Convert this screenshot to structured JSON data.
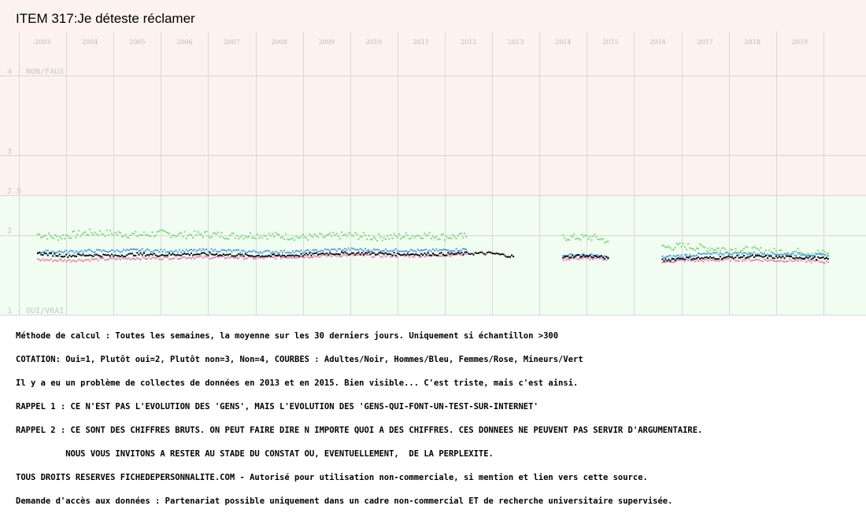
{
  "chart_data": {
    "type": "scatter",
    "title": "ITEM 317:Je déteste réclamer",
    "x_tick_labels": [
      "2003",
      "2004",
      "2005",
      "2006",
      "2007",
      "2008",
      "2009",
      "2010",
      "2011",
      "2012",
      "2013",
      "2014",
      "2015",
      "2016",
      "2017",
      "2018",
      "2019"
    ],
    "y_tick_labels": [
      {
        "value": 4,
        "label": "4 - NON/FAUX"
      },
      {
        "value": 3,
        "label": "3"
      },
      {
        "value": 2.5,
        "label": "2.5"
      },
      {
        "value": 2,
        "label": "2"
      },
      {
        "value": 1,
        "label": "1 - OUI/VRAI"
      }
    ],
    "ylim": [
      1,
      4.95
    ],
    "xlim": [
      2002.1,
      2020.4
    ],
    "grid": true,
    "background_bands": [
      {
        "from": 2.5,
        "to": 4.95,
        "color": "#fdf3ee"
      },
      {
        "from": 1,
        "to": 2.5,
        "color": "#f0fdf0"
      }
    ],
    "series": [
      {
        "name": "Adultes",
        "color": "#000000",
        "segments": [
          {
            "x": [
              2002.9,
              2003.5,
              2004.0,
              2004.5,
              2005.0,
              2005.5,
              2006.0,
              2006.5,
              2007.0,
              2007.5,
              2008.0,
              2008.5,
              2009.0,
              2009.5,
              2010.0,
              2010.5,
              2011.0,
              2011.5,
              2012.0,
              2012.5,
              2012.95
            ],
            "y": [
              1.77,
              1.74,
              1.75,
              1.74,
              1.76,
              1.75,
              1.76,
              1.76,
              1.75,
              1.74,
              1.74,
              1.75,
              1.77,
              1.77,
              1.77,
              1.76,
              1.76,
              1.76,
              1.77,
              1.77,
              1.73
            ]
          },
          {
            "x": [
              2014.0,
              2014.3,
              2014.7,
              2014.95
            ],
            "y": [
              1.72,
              1.74,
              1.73,
              1.71
            ]
          },
          {
            "x": [
              2016.1,
              2016.5,
              2017.0,
              2017.5,
              2018.0,
              2018.5,
              2019.0,
              2019.6
            ],
            "y": [
              1.68,
              1.71,
              1.71,
              1.72,
              1.73,
              1.72,
              1.72,
              1.7
            ]
          }
        ]
      },
      {
        "name": "Hommes",
        "color": "#4f9be8",
        "segments": [
          {
            "x": [
              2002.9,
              2003.5,
              2004.0,
              2004.5,
              2005.0,
              2005.5,
              2006.0,
              2006.5,
              2007.0,
              2007.5,
              2008.0,
              2008.5,
              2009.0,
              2009.5,
              2010.0,
              2010.5,
              2011.0,
              2011.5,
              2011.95
            ],
            "y": [
              1.79,
              1.79,
              1.8,
              1.8,
              1.81,
              1.8,
              1.8,
              1.81,
              1.8,
              1.79,
              1.79,
              1.79,
              1.81,
              1.82,
              1.81,
              1.81,
              1.8,
              1.81,
              1.82
            ]
          },
          {
            "x": [
              2014.0,
              2014.3,
              2014.7,
              2014.95
            ],
            "y": [
              1.74,
              1.75,
              1.74,
              1.72
            ]
          },
          {
            "x": [
              2016.1,
              2016.5,
              2017.0,
              2017.5,
              2018.0,
              2018.5,
              2019.0,
              2019.6
            ],
            "y": [
              1.72,
              1.74,
              1.76,
              1.77,
              1.77,
              1.76,
              1.76,
              1.74
            ]
          }
        ]
      },
      {
        "name": "Femmes",
        "color": "#ee7fb4",
        "segments": [
          {
            "x": [
              2002.9,
              2003.5,
              2004.0,
              2004.5,
              2005.0,
              2005.5,
              2006.0,
              2006.5,
              2007.0,
              2007.5,
              2008.0,
              2008.5,
              2009.0,
              2009.5,
              2010.0,
              2010.5,
              2011.0,
              2011.5,
              2011.95
            ],
            "y": [
              1.69,
              1.68,
              1.69,
              1.7,
              1.71,
              1.71,
              1.72,
              1.72,
              1.72,
              1.71,
              1.72,
              1.73,
              1.74,
              1.75,
              1.74,
              1.74,
              1.74,
              1.75,
              1.76
            ]
          },
          {
            "x": [
              2014.0,
              2014.3,
              2014.7,
              2014.95
            ],
            "y": [
              1.7,
              1.71,
              1.7,
              1.7
            ]
          },
          {
            "x": [
              2016.1,
              2016.5,
              2017.0,
              2017.5,
              2018.0,
              2018.5,
              2019.0,
              2019.6
            ],
            "y": [
              1.66,
              1.68,
              1.68,
              1.69,
              1.69,
              1.68,
              1.68,
              1.66
            ]
          }
        ]
      },
      {
        "name": "Mineurs",
        "color": "#7fd87f",
        "segments": [
          {
            "x": [
              2002.9,
              2003.3,
              2003.6,
              2004.0,
              2004.5,
              2005.0,
              2005.5,
              2006.0,
              2006.5,
              2007.0,
              2007.5,
              2008.0,
              2008.5,
              2009.0,
              2009.5,
              2010.0,
              2010.5,
              2011.0,
              2011.5,
              2011.95
            ],
            "y": [
              2.01,
              1.97,
              2.0,
              2.03,
              2.02,
              2.0,
              2.02,
              2.0,
              2.01,
              1.99,
              2.0,
              1.99,
              1.97,
              1.98,
              2.0,
              1.97,
              1.98,
              2.0,
              1.98,
              1.98
            ]
          },
          {
            "x": [
              2014.0,
              2014.3,
              2014.7,
              2014.95
            ],
            "y": [
              1.97,
              1.97,
              1.97,
              1.92
            ]
          },
          {
            "x": [
              2016.1,
              2016.5,
              2017.0,
              2017.5,
              2018.0,
              2018.5,
              2019.0,
              2019.6
            ],
            "y": [
              1.84,
              1.86,
              1.84,
              1.82,
              1.81,
              1.79,
              1.79,
              1.77
            ]
          }
        ]
      }
    ]
  },
  "notes": [
    "Méthode de calcul : Toutes les semaines, la moyenne sur les 30 derniers jours. Uniquement si échantillon >300",
    "COTATION: Oui=1, Plutôt oui=2, Plutôt non=3, Non=4, COURBES : Adultes/Noir, Hommes/Bleu, Femmes/Rose, Mineurs/Vert",
    "Il y a eu un problème de collectes de données en 2013 et en 2015. Bien visible... C'est triste, mais c'est ainsi.",
    "RAPPEL 1 : CE N'EST PAS L'EVOLUTION DES 'GENS', MAIS L'EVOLUTION DES 'GENS-QUI-FONT-UN-TEST-SUR-INTERNET'",
    "RAPPEL 2 : CE SONT DES CHIFFRES BRUTS. ON PEUT FAIRE DIRE N IMPORTE QUOI A DES CHIFFRES. CES DONNEES NE PEUVENT PAS SERVIR D'ARGUMENTAIRE.",
    "          NOUS VOUS INVITONS A RESTER AU STADE DU CONSTAT OU, EVENTUELLEMENT,  DE LA PERPLEXITE.",
    "TOUS DROITS RESERVES FICHEDEPERSONNALITE.COM - Autorisé pour utilisation non-commerciale, si mention et lien vers cette source.",
    "Demande d'accès aux données : Partenariat possible uniquement dans un cadre non-commercial ET de recherche universitaire supervisée."
  ]
}
